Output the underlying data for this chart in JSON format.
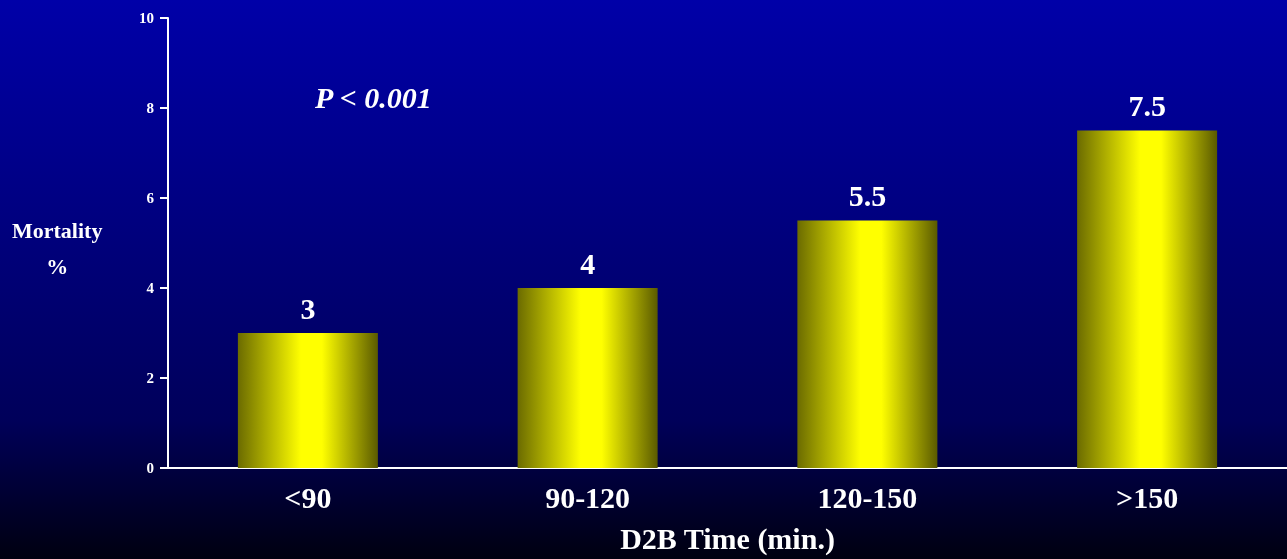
{
  "chart_data": {
    "type": "bar",
    "categories": [
      "<90",
      "90-120",
      "120-150",
      ">150"
    ],
    "values": [
      3,
      4,
      5.5,
      7.5
    ],
    "color": "#ffff00",
    "xlabel": "D2B Time (min.)",
    "ylabel": "Mortality %",
    "annotations": [
      "P < 0.001"
    ],
    "ylim": [
      0,
      10
    ],
    "yticks": [
      0,
      2,
      4,
      6,
      8,
      10
    ],
    "grid": false,
    "data_labels": true
  }
}
